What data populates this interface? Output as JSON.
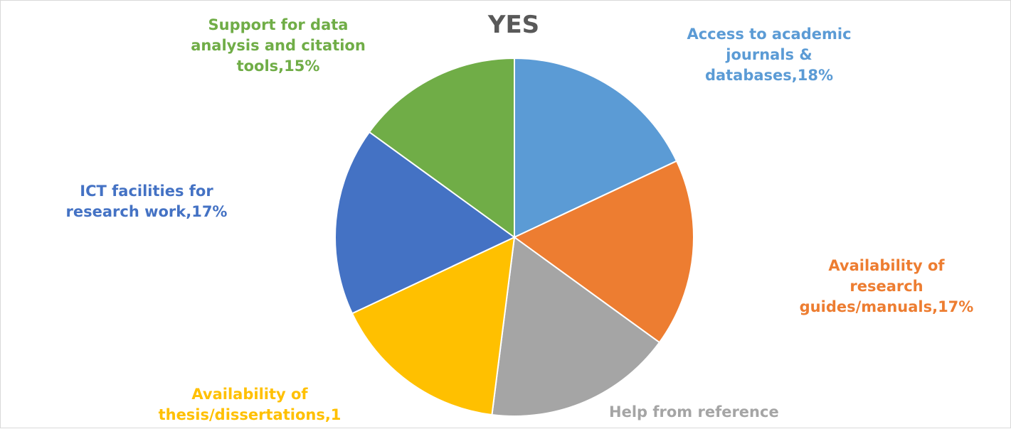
{
  "chart_data": {
    "type": "pie",
    "title": "YES",
    "legend": "none",
    "slices": [
      {
        "name": "Access to academic journals & databases",
        "value": 18,
        "label_lines": [
          "Access to academic",
          "journals &",
          "databases,18%"
        ],
        "color": "#5b9bd5"
      },
      {
        "name": "Availability of research guides/manuals",
        "value": 17,
        "label_lines": [
          "Availability of",
          "research",
          "guides/manuals,17%"
        ],
        "color": "#ed7d31"
      },
      {
        "name": "Help from reference",
        "value": 17,
        "label_lines": [
          "Help from reference"
        ],
        "color": "#a5a5a5"
      },
      {
        "name": "Availability of thesis/dissertations",
        "value": 16,
        "label_lines": [
          "Availability of",
          "thesis/dissertations,1"
        ],
        "color": "#ffc000"
      },
      {
        "name": "ICT facilities for research work",
        "value": 17,
        "label_lines": [
          "ICT facilities for",
          "research work,17%"
        ],
        "color": "#4472c4"
      },
      {
        "name": "Support for data analysis and citation tools",
        "value": 15,
        "label_lines": [
          "Support for data",
          "analysis and citation",
          "tools,15%"
        ],
        "color": "#70ad47"
      }
    ]
  }
}
